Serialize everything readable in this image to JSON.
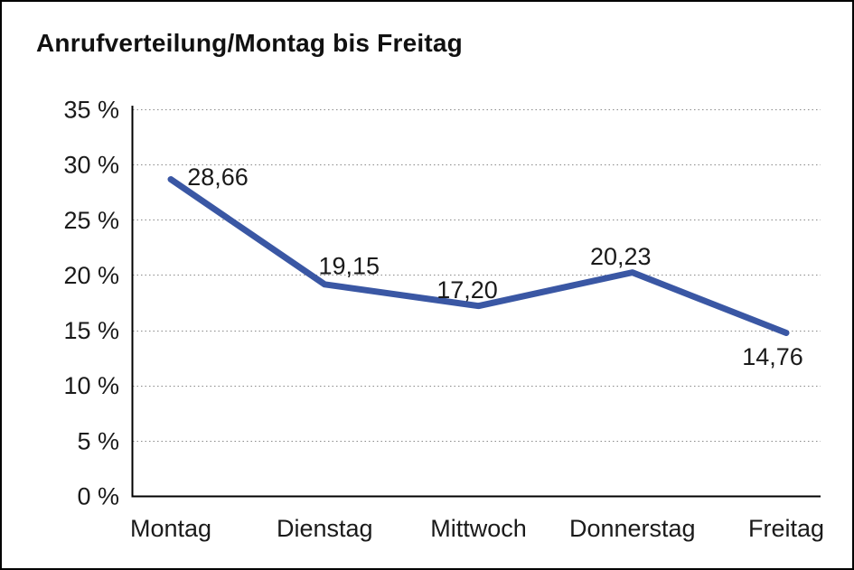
{
  "chart_data": {
    "type": "line",
    "title": "Anrufverteilung/Montag bis Freitag",
    "categories": [
      "Montag",
      "Dienstag",
      "Mittwoch",
      "Donnerstag",
      "Freitag"
    ],
    "values": [
      28.66,
      19.15,
      17.2,
      20.23,
      14.76
    ],
    "data_labels": [
      "28,66",
      "19,15",
      "17,20",
      "20,23",
      "14,76"
    ],
    "ytick_values": [
      0,
      5,
      10,
      15,
      20,
      25,
      30,
      35
    ],
    "ytick_labels": [
      "0 %",
      "5 %",
      "10 %",
      "15 %",
      "20 %",
      "25 %",
      "30 %",
      "35 %"
    ],
    "ylim": [
      0,
      35
    ],
    "xlabel": "",
    "ylabel": "",
    "legend": "none",
    "grid": "horizontal-dotted",
    "line_color": "#3A57A4",
    "text_color": "#1a1a1a",
    "axis_color": "#000000",
    "gridline_color": "#8a8a8a"
  }
}
